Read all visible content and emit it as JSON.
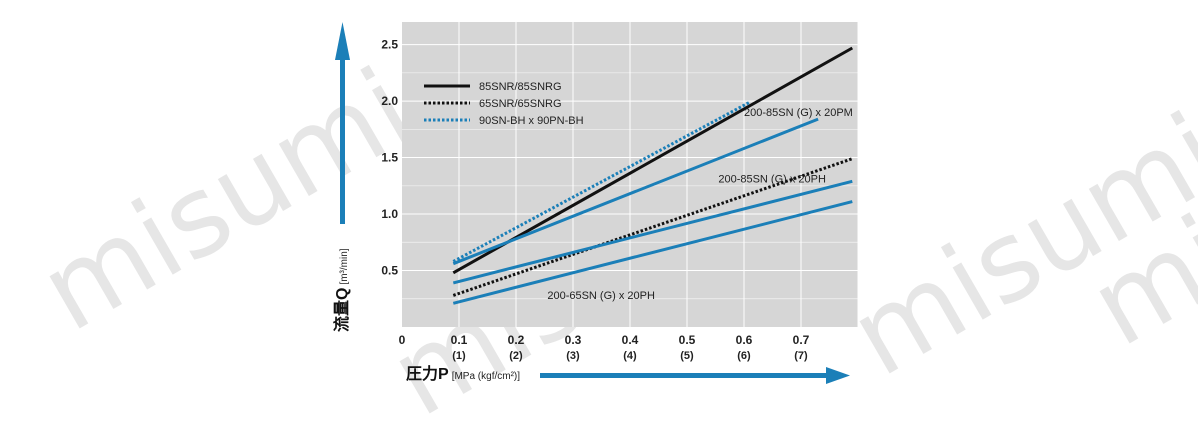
{
  "watermark": {
    "text": "misumi"
  },
  "chart_data": {
    "type": "line",
    "xlabel": "圧力P",
    "xunit": "[MPa (kgf/cm²)]",
    "ylabel": "流量Q",
    "yunit": "[m³/min]",
    "xlim": [
      0,
      0.8
    ],
    "ylim": [
      0,
      2.7
    ],
    "x_ticks": [
      {
        "value": 0,
        "label": "0",
        "kgf": ""
      },
      {
        "value": 0.1,
        "label": "0.1",
        "kgf": "(1)"
      },
      {
        "value": 0.2,
        "label": "0.2",
        "kgf": "(2)"
      },
      {
        "value": 0.3,
        "label": "0.3",
        "kgf": "(3)"
      },
      {
        "value": 0.4,
        "label": "0.4",
        "kgf": "(4)"
      },
      {
        "value": 0.5,
        "label": "0.5",
        "kgf": "(5)"
      },
      {
        "value": 0.6,
        "label": "0.6",
        "kgf": "(6)"
      },
      {
        "value": 0.7,
        "label": "0.7",
        "kgf": "(7)"
      }
    ],
    "y_ticks": [
      {
        "value": 0.5,
        "label": "0.5"
      },
      {
        "value": 1.0,
        "label": "1.0"
      },
      {
        "value": 1.5,
        "label": "1.5"
      },
      {
        "value": 2.0,
        "label": "2.0"
      },
      {
        "value": 2.5,
        "label": "2.5"
      }
    ],
    "grid": true,
    "legend_position": "top-left",
    "series": [
      {
        "name": "85SNR/85SNRG",
        "style": "solid",
        "color": "#111111",
        "x": [
          0.09,
          0.79
        ],
        "y": [
          0.48,
          2.47
        ]
      },
      {
        "name": "65SNR/65SNRG",
        "style": "dotted",
        "color": "#111111",
        "x": [
          0.09,
          0.79
        ],
        "y": [
          0.28,
          1.49
        ]
      },
      {
        "name": "90SN-BH x 90PN-BH",
        "style": "dotted",
        "color": "#1b7fb8",
        "x": [
          0.09,
          0.61
        ],
        "y": [
          0.58,
          1.99
        ]
      },
      {
        "name": "",
        "style": "solid",
        "color": "#1b7fb8",
        "x": [
          0.09,
          0.73
        ],
        "y": [
          0.56,
          1.84
        ]
      },
      {
        "name": "",
        "style": "solid",
        "color": "#1b7fb8",
        "x": [
          0.09,
          0.79
        ],
        "y": [
          0.39,
          1.29
        ]
      },
      {
        "name": "",
        "style": "solid",
        "color": "#1b7fb8",
        "x": [
          0.09,
          0.79
        ],
        "y": [
          0.21,
          1.11
        ]
      }
    ],
    "annotations": [
      {
        "text": "200-85SN (G) x 20PM",
        "x": 0.6,
        "y": 1.87
      },
      {
        "text": "200-85SN (G) x 20PH",
        "x": 0.555,
        "y": 1.28
      },
      {
        "text": "200-65SN (G) x 20PH",
        "x": 0.255,
        "y": 0.25
      }
    ],
    "colors": {
      "background": "#d6d6d6",
      "grid": "#ffffff",
      "axis_arrow": "#1b7fb8",
      "black": "#111111",
      "blue": "#1b7fb8"
    }
  }
}
